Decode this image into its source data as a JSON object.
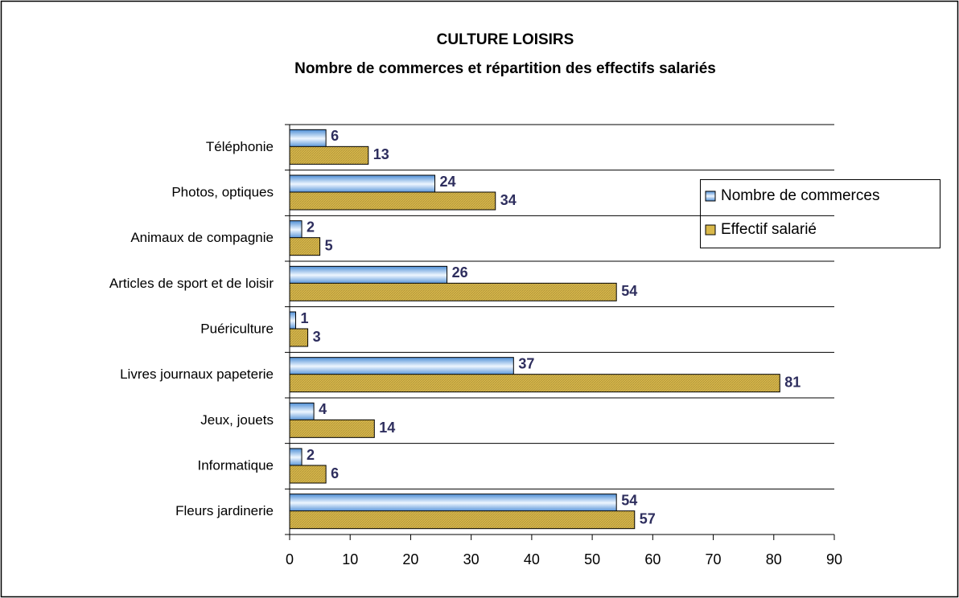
{
  "chart_data": {
    "type": "bar",
    "orientation": "horizontal",
    "title": "CULTURE LOISIRS",
    "subtitle": "Nombre de commerces et répartition des effectifs salariés",
    "categories": [
      "Téléphonie",
      "Photos, optiques",
      "Animaux de compagnie",
      "Articles de sport et de loisir",
      "Puériculture",
      "Livres journaux papeterie",
      "Jeux, jouets",
      "Informatique",
      "Fleurs jardinerie"
    ],
    "series": [
      {
        "name": "Nombre de commerces",
        "color": "#4f8fd6",
        "values": [
          6,
          24,
          2,
          26,
          1,
          37,
          4,
          2,
          54
        ]
      },
      {
        "name": "Effectif salarié",
        "color": "#d9b84a",
        "values": [
          13,
          34,
          5,
          54,
          3,
          81,
          14,
          6,
          57
        ]
      }
    ],
    "xlim": [
      0,
      90
    ],
    "xticks": [
      0,
      10,
      20,
      30,
      40,
      50,
      60,
      70,
      80,
      90
    ],
    "legend": "right"
  }
}
